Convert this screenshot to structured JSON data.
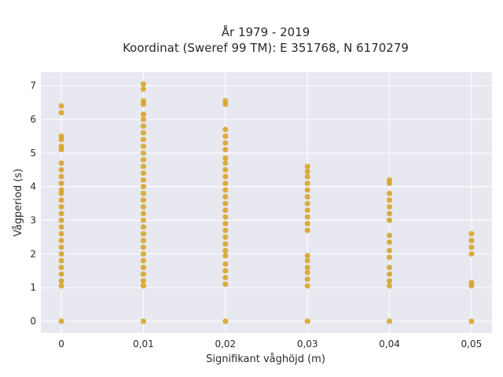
{
  "chart_data": {
    "type": "scatter",
    "title": "År 1979 - 2019",
    "subtitle": "Koordinat (Sweref 99 TM): E 351768, N 6170279",
    "xlabel": "Signifikant våghöjd (m)",
    "ylabel": "Vågperiod (s)",
    "xlim": [
      -0.0025,
      0.0525
    ],
    "ylim": [
      -0.35,
      7.4
    ],
    "x_ticks": [
      0,
      0.01,
      0.02,
      0.03,
      0.04,
      0.05
    ],
    "x_tick_labels": [
      "0",
      "0,01",
      "0,02",
      "0,03",
      "0,04",
      "0,05"
    ],
    "y_ticks": [
      0,
      1,
      2,
      3,
      4,
      5,
      6,
      7
    ],
    "y_tick_labels": [
      "0",
      "1",
      "2",
      "3",
      "4",
      "5",
      "6",
      "7"
    ],
    "grid": true,
    "colors": {
      "marker": "#d4a020",
      "plot_bg": "#e8e8f0",
      "grid": "#ffffff"
    },
    "series": [
      {
        "points": [
          {
            "x": 0,
            "y": 0
          },
          {
            "x": 0,
            "y": 6.4
          },
          {
            "x": 0,
            "y": 6.2
          },
          {
            "x": 0,
            "y": 5.5
          },
          {
            "x": 0,
            "y": 5.4
          },
          {
            "x": 0,
            "y": 5.2
          },
          {
            "x": 0,
            "y": 5.1
          },
          {
            "x": 0,
            "y": 4.7
          },
          {
            "x": 0,
            "y": 4.5
          },
          {
            "x": 0,
            "y": 4.3
          },
          {
            "x": 0,
            "y": 4.1
          },
          {
            "x": 0,
            "y": 3.9
          },
          {
            "x": 0,
            "y": 3.8
          },
          {
            "x": 0,
            "y": 3.6
          },
          {
            "x": 0,
            "y": 3.4
          },
          {
            "x": 0,
            "y": 3.2
          },
          {
            "x": 0,
            "y": 3.0
          },
          {
            "x": 0,
            "y": 2.8
          },
          {
            "x": 0,
            "y": 2.6
          },
          {
            "x": 0,
            "y": 2.4
          },
          {
            "x": 0,
            "y": 2.2
          },
          {
            "x": 0,
            "y": 2.0
          },
          {
            "x": 0,
            "y": 1.8
          },
          {
            "x": 0,
            "y": 1.6
          },
          {
            "x": 0,
            "y": 1.4
          },
          {
            "x": 0,
            "y": 1.2
          },
          {
            "x": 0,
            "y": 1.05
          },
          {
            "x": 0.01,
            "y": 0
          },
          {
            "x": 0.01,
            "y": 7.05
          },
          {
            "x": 0.01,
            "y": 6.9
          },
          {
            "x": 0.01,
            "y": 6.55
          },
          {
            "x": 0.01,
            "y": 6.45
          },
          {
            "x": 0.01,
            "y": 6.15
          },
          {
            "x": 0.01,
            "y": 6.0
          },
          {
            "x": 0.01,
            "y": 5.8
          },
          {
            "x": 0.01,
            "y": 5.6
          },
          {
            "x": 0.01,
            "y": 5.4
          },
          {
            "x": 0.01,
            "y": 5.2
          },
          {
            "x": 0.01,
            "y": 5.0
          },
          {
            "x": 0.01,
            "y": 4.8
          },
          {
            "x": 0.01,
            "y": 4.6
          },
          {
            "x": 0.01,
            "y": 4.4
          },
          {
            "x": 0.01,
            "y": 4.2
          },
          {
            "x": 0.01,
            "y": 4.0
          },
          {
            "x": 0.01,
            "y": 3.8
          },
          {
            "x": 0.01,
            "y": 3.6
          },
          {
            "x": 0.01,
            "y": 3.4
          },
          {
            "x": 0.01,
            "y": 3.2
          },
          {
            "x": 0.01,
            "y": 3.0
          },
          {
            "x": 0.01,
            "y": 2.8
          },
          {
            "x": 0.01,
            "y": 2.6
          },
          {
            "x": 0.01,
            "y": 2.4
          },
          {
            "x": 0.01,
            "y": 2.2
          },
          {
            "x": 0.01,
            "y": 2.0
          },
          {
            "x": 0.01,
            "y": 1.8
          },
          {
            "x": 0.01,
            "y": 1.6
          },
          {
            "x": 0.01,
            "y": 1.4
          },
          {
            "x": 0.01,
            "y": 1.2
          },
          {
            "x": 0.01,
            "y": 1.05
          },
          {
            "x": 0.02,
            "y": 0
          },
          {
            "x": 0.02,
            "y": 6.55
          },
          {
            "x": 0.02,
            "y": 6.45
          },
          {
            "x": 0.02,
            "y": 5.7
          },
          {
            "x": 0.02,
            "y": 5.5
          },
          {
            "x": 0.02,
            "y": 5.3
          },
          {
            "x": 0.02,
            "y": 5.1
          },
          {
            "x": 0.02,
            "y": 4.85
          },
          {
            "x": 0.02,
            "y": 4.7
          },
          {
            "x": 0.02,
            "y": 4.5
          },
          {
            "x": 0.02,
            "y": 4.3
          },
          {
            "x": 0.02,
            "y": 4.1
          },
          {
            "x": 0.02,
            "y": 3.9
          },
          {
            "x": 0.02,
            "y": 3.7
          },
          {
            "x": 0.02,
            "y": 3.5
          },
          {
            "x": 0.02,
            "y": 3.3
          },
          {
            "x": 0.02,
            "y": 3.1
          },
          {
            "x": 0.02,
            "y": 2.9
          },
          {
            "x": 0.02,
            "y": 2.7
          },
          {
            "x": 0.02,
            "y": 2.5
          },
          {
            "x": 0.02,
            "y": 2.3
          },
          {
            "x": 0.02,
            "y": 2.1
          },
          {
            "x": 0.02,
            "y": 1.95
          },
          {
            "x": 0.02,
            "y": 1.7
          },
          {
            "x": 0.02,
            "y": 1.5
          },
          {
            "x": 0.02,
            "y": 1.3
          },
          {
            "x": 0.02,
            "y": 1.1
          },
          {
            "x": 0.03,
            "y": 0
          },
          {
            "x": 0.03,
            "y": 4.6
          },
          {
            "x": 0.03,
            "y": 4.45
          },
          {
            "x": 0.03,
            "y": 4.3
          },
          {
            "x": 0.03,
            "y": 4.1
          },
          {
            "x": 0.03,
            "y": 3.9
          },
          {
            "x": 0.03,
            "y": 3.7
          },
          {
            "x": 0.03,
            "y": 3.5
          },
          {
            "x": 0.03,
            "y": 3.3
          },
          {
            "x": 0.03,
            "y": 3.1
          },
          {
            "x": 0.03,
            "y": 2.9
          },
          {
            "x": 0.03,
            "y": 2.7
          },
          {
            "x": 0.03,
            "y": 1.95
          },
          {
            "x": 0.03,
            "y": 1.8
          },
          {
            "x": 0.03,
            "y": 1.6
          },
          {
            "x": 0.03,
            "y": 1.45
          },
          {
            "x": 0.03,
            "y": 1.25
          },
          {
            "x": 0.03,
            "y": 1.05
          },
          {
            "x": 0.04,
            "y": 0
          },
          {
            "x": 0.04,
            "y": 4.2
          },
          {
            "x": 0.04,
            "y": 4.1
          },
          {
            "x": 0.04,
            "y": 3.8
          },
          {
            "x": 0.04,
            "y": 3.6
          },
          {
            "x": 0.04,
            "y": 3.4
          },
          {
            "x": 0.04,
            "y": 3.2
          },
          {
            "x": 0.04,
            "y": 3.0
          },
          {
            "x": 0.04,
            "y": 2.55
          },
          {
            "x": 0.04,
            "y": 2.35
          },
          {
            "x": 0.04,
            "y": 2.1
          },
          {
            "x": 0.04,
            "y": 1.9
          },
          {
            "x": 0.04,
            "y": 1.6
          },
          {
            "x": 0.04,
            "y": 1.4
          },
          {
            "x": 0.04,
            "y": 1.2
          },
          {
            "x": 0.04,
            "y": 1.05
          },
          {
            "x": 0.05,
            "y": 0
          },
          {
            "x": 0.05,
            "y": 2.6
          },
          {
            "x": 0.05,
            "y": 2.4
          },
          {
            "x": 0.05,
            "y": 2.2
          },
          {
            "x": 0.05,
            "y": 2.0
          },
          {
            "x": 0.05,
            "y": 1.15
          },
          {
            "x": 0.05,
            "y": 1.05
          }
        ]
      }
    ]
  }
}
